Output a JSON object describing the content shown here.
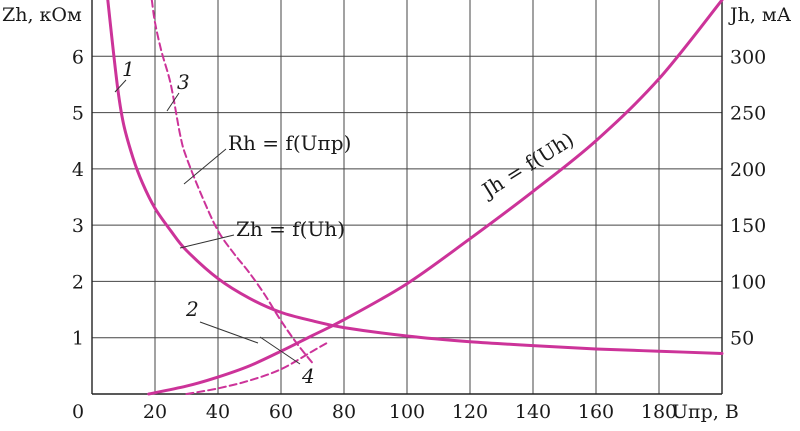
{
  "chart_data": {
    "type": "line",
    "title": "",
    "xlabel": "Uпр, В",
    "ylabel_left": "Zh, кОм",
    "ylabel_right": "Jh, мА",
    "xlim": [
      0,
      200
    ],
    "ylim_left": [
      0,
      7
    ],
    "ylim_right": [
      0,
      350
    ],
    "grid": true,
    "colors": {
      "series": "#cc3399",
      "grid": "#444444",
      "text": "#1a1a1a"
    },
    "x_ticks": [
      "0",
      "20",
      "40",
      "60",
      "80",
      "100",
      "120",
      "140",
      "160",
      "180"
    ],
    "y_left_ticks": [
      "1",
      "2",
      "3",
      "4",
      "5",
      "6"
    ],
    "y_right_ticks": [
      "50",
      "100",
      "150",
      "200",
      "250",
      "300"
    ],
    "series": [
      {
        "curve_number": "1",
        "name": "Zh = f(Uh)",
        "axis": "left",
        "style": "solid",
        "x": [
          5,
          8,
          10,
          13,
          16,
          20,
          25,
          30,
          40,
          50,
          60,
          70,
          80,
          100,
          120,
          140,
          160,
          180,
          200
        ],
        "y": [
          7.0,
          5.5,
          4.8,
          4.2,
          3.75,
          3.3,
          2.9,
          2.55,
          2.05,
          1.7,
          1.45,
          1.3,
          1.18,
          1.03,
          0.93,
          0.86,
          0.8,
          0.76,
          0.72
        ]
      },
      {
        "curve_number": "2",
        "name": "Jh = f(Uh)",
        "axis": "right",
        "style": "solid",
        "x": [
          18,
          30,
          40,
          50,
          60,
          70,
          80,
          100,
          120,
          140,
          160,
          180,
          200
        ],
        "y": [
          0,
          7,
          15,
          25,
          38,
          52,
          66,
          98,
          138,
          180,
          225,
          280,
          358
        ]
      },
      {
        "curve_number": "3",
        "name": "Rh = f(Uпр)",
        "axis": "left",
        "style": "dashed",
        "x": [
          19,
          20,
          22,
          25,
          28,
          30,
          35,
          40,
          45,
          50,
          55,
          60,
          65,
          70
        ],
        "y": [
          7.0,
          6.6,
          6.1,
          5.5,
          4.6,
          4.2,
          3.5,
          2.9,
          2.5,
          2.15,
          1.75,
          1.3,
          0.9,
          0.55
        ]
      },
      {
        "curve_number": "4",
        "name": "",
        "axis": "right",
        "style": "dashed",
        "x": [
          30,
          40,
          50,
          60,
          70,
          75
        ],
        "y": [
          0,
          5,
          12,
          22,
          38,
          46
        ]
      }
    ],
    "annotations": [
      "Rh = f(Uпр)",
      "Zh = f(Uh)",
      "Jh = f(Uh)"
    ],
    "curve_labels": [
      "1",
      "2",
      "3",
      "4"
    ]
  }
}
